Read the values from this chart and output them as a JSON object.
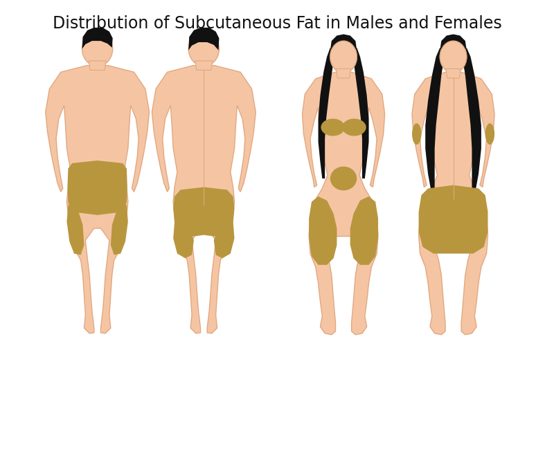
{
  "title": "Distribution of Subcutaneous Fat in Males and Females",
  "title_fontsize": 17,
  "background_color": "#ffffff",
  "skin_color": "#F5C5A3",
  "skin_outline_color": "#E0A882",
  "fat_color": "#B8963E",
  "fat_alpha": 1.0,
  "hair_color": "#111111",
  "figure_width": 8.0,
  "figure_height": 6.59,
  "dpi": 100
}
